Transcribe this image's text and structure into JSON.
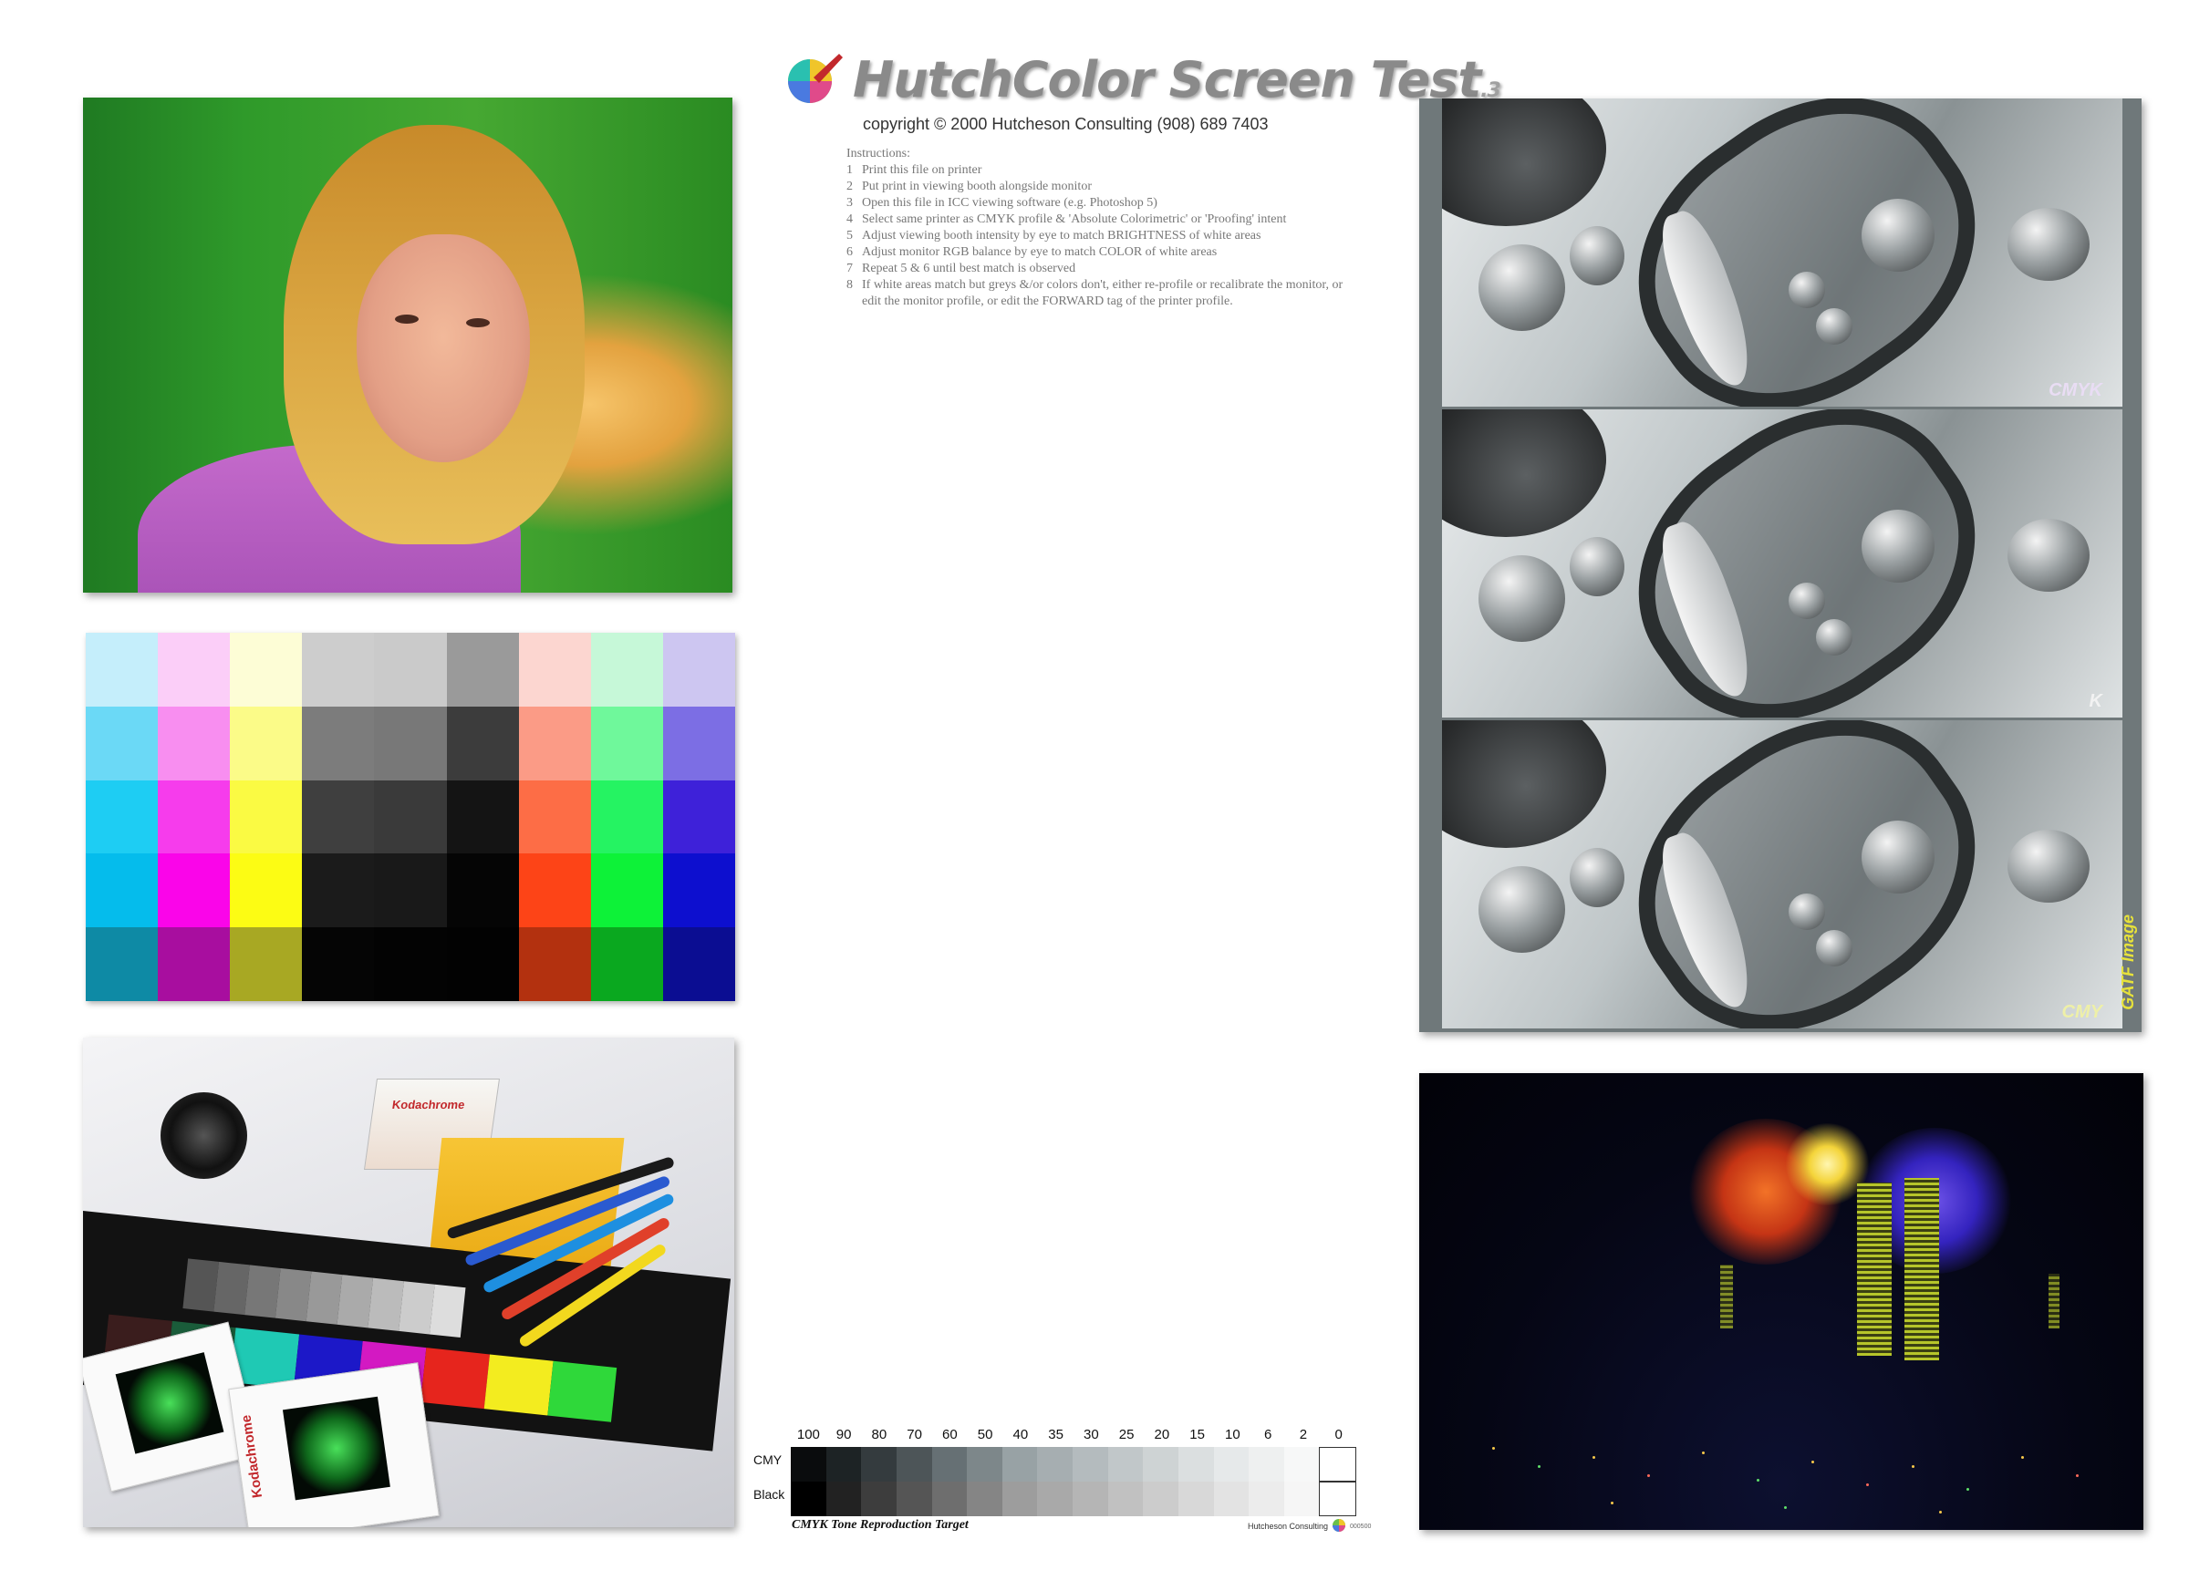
{
  "title": {
    "main": "HutchColor Screen Test",
    "suffix": ".3",
    "copyright": "copyright © 2000 Hutcheson Consulting (908) 689 7403"
  },
  "instructions": {
    "heading": "Instructions:",
    "items": [
      {
        "num": "1",
        "text": "Print this file on printer"
      },
      {
        "num": "2",
        "text": "Put print in viewing booth alongside monitor"
      },
      {
        "num": "3",
        "text": "Open this file in ICC viewing software (e.g. Photoshop 5)"
      },
      {
        "num": "4",
        "text": "Select same printer as CMYK profile & 'Absolute Colorimetric' or 'Proofing' intent"
      },
      {
        "num": "5",
        "text": "Adjust viewing booth intensity by eye to match BRIGHTNESS of white areas"
      },
      {
        "num": "6",
        "text": "Adjust monitor RGB balance by eye to match COLOR of white areas"
      },
      {
        "num": "7",
        "text": "Repeat 5 & 6 until best match is observed"
      },
      {
        "num": "8",
        "text": "If white areas match but greys &/or colors don't, either re-profile or recalibrate the monitor, or edit the monitor profile, or edit the FORWARD tag of the printer profile."
      }
    ]
  },
  "patch_chart": {
    "rows": [
      [
        "#c5eefb",
        "#fbcef8",
        "#fdfdd6",
        "#cdcdcd",
        "#cacaca",
        "#9a9a9a",
        "#fcd6d0",
        "#c6f8d8",
        "#cdc6f1"
      ],
      [
        "#6bd9f6",
        "#f88ef0",
        "#fbfb88",
        "#7c7c7c",
        "#787878",
        "#3c3c3c",
        "#fb9b86",
        "#6ff89b",
        "#7c6ee4"
      ],
      [
        "#1ecdf3",
        "#f63cec",
        "#fafa43",
        "#3f3f3f",
        "#3a3a3a",
        "#141414",
        "#fd6d46",
        "#25f362",
        "#3e21d9"
      ],
      [
        "#05bcec",
        "#fa05e9",
        "#fcfc14",
        "#1b1b1b",
        "#191919",
        "#050505",
        "#fd4417",
        "#0df238",
        "#0d0fcf"
      ],
      [
        "#0e8aa5",
        "#a80e9f",
        "#a8a823",
        "#050505",
        "#030303",
        "#020202",
        "#b3310f",
        "#0aa81f",
        "#0b0d92"
      ]
    ]
  },
  "kodak": {
    "box_label": "Kodachrome",
    "slide_label": "Kodachrome"
  },
  "fruit": {
    "strip_labels": [
      {
        "text": "CMYK",
        "color": "#e9ddf4"
      },
      {
        "text": "K",
        "color": "#f2f2f2"
      },
      {
        "text": "CMY",
        "color": "#eef0a8"
      }
    ],
    "gatf_label": "GATF Image"
  },
  "tone_target": {
    "steps": [
      "100",
      "90",
      "80",
      "70",
      "60",
      "50",
      "40",
      "35",
      "30",
      "25",
      "20",
      "15",
      "10",
      "6",
      "2",
      "0"
    ],
    "cmy_label": "CMY",
    "black_label": "Black",
    "cmy_grays": [
      "#0a0c0d",
      "#1d2325",
      "#343b3e",
      "#4d5558",
      "#667074",
      "#7d878a",
      "#98a2a5",
      "#a6aeb1",
      "#b4bbbe",
      "#c1c7c9",
      "#ced3d4",
      "#dbdfe0",
      "#e6e9ea",
      "#eef0f0",
      "#f7f8f8",
      "#ffffff"
    ],
    "black_grays": [
      "#000000",
      "#222222",
      "#3d3d3d",
      "#555555",
      "#6e6e6e",
      "#858585",
      "#9d9d9d",
      "#a9a9a9",
      "#b5b5b5",
      "#c1c1c1",
      "#cccccc",
      "#d8d8d8",
      "#e3e3e3",
      "#ececec",
      "#f6f6f6",
      "#ffffff"
    ],
    "caption": "CMYK Tone Reproduction Target",
    "credit": "Hutcheson Consulting",
    "credit_code": "000500"
  }
}
